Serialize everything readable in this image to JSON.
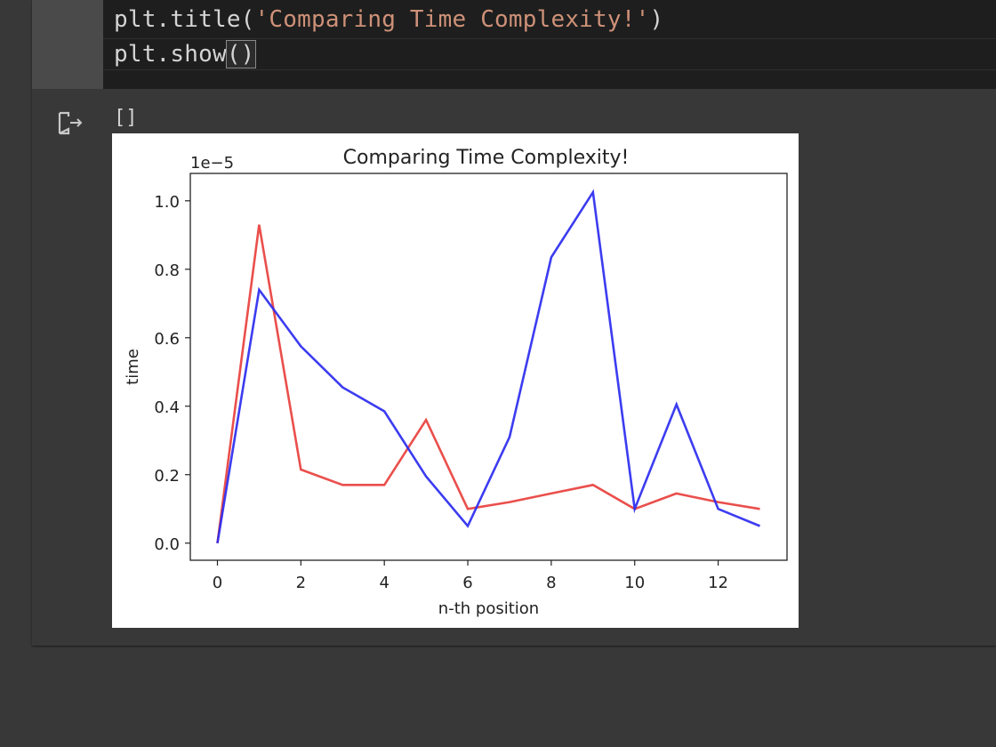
{
  "code": {
    "line1": {
      "func": "plt.title(",
      "string": "'Comparing Time Complexity!'",
      "close": ")"
    },
    "line2": {
      "func": "plt.show",
      "parens": "()"
    }
  },
  "output": {
    "icon": "output-arrow-icon",
    "text": "[]"
  },
  "chart_data": {
    "type": "line",
    "title": "Comparing Time Complexity!",
    "xlabel": "n-th position",
    "ylabel": "time",
    "offset_text": "1e−5",
    "xlim": [
      -0.65,
      13.65
    ],
    "ylim": [
      -0.05,
      1.08
    ],
    "xticks": [
      0,
      2,
      4,
      6,
      8,
      10,
      12
    ],
    "xtick_labels": [
      "0",
      "2",
      "4",
      "6",
      "8",
      "10",
      "12"
    ],
    "yticks": [
      0.0,
      0.2,
      0.4,
      0.6,
      0.8,
      1.0
    ],
    "ytick_labels": [
      "0.0",
      "0.2",
      "0.4",
      "0.6",
      "0.8",
      "1.0"
    ],
    "grid": false,
    "series": [
      {
        "color": "#e8403d",
        "x": [
          0,
          1,
          2,
          3,
          4,
          5,
          6,
          7,
          8,
          9,
          10,
          11,
          12,
          13
        ],
        "y": [
          0.0,
          0.93,
          0.215,
          0.17,
          0.17,
          0.36,
          0.1,
          0.12,
          0.145,
          0.17,
          0.1,
          0.145,
          0.12,
          0.1
        ]
      },
      {
        "color": "#2b2bf0",
        "x": [
          0,
          1,
          2,
          3,
          4,
          5,
          6,
          7,
          8,
          9,
          10,
          11,
          12,
          13
        ],
        "y": [
          0.0,
          0.74,
          0.575,
          0.455,
          0.385,
          0.195,
          0.05,
          0.31,
          0.835,
          1.025,
          0.1,
          0.405,
          0.1,
          0.05
        ]
      }
    ]
  }
}
